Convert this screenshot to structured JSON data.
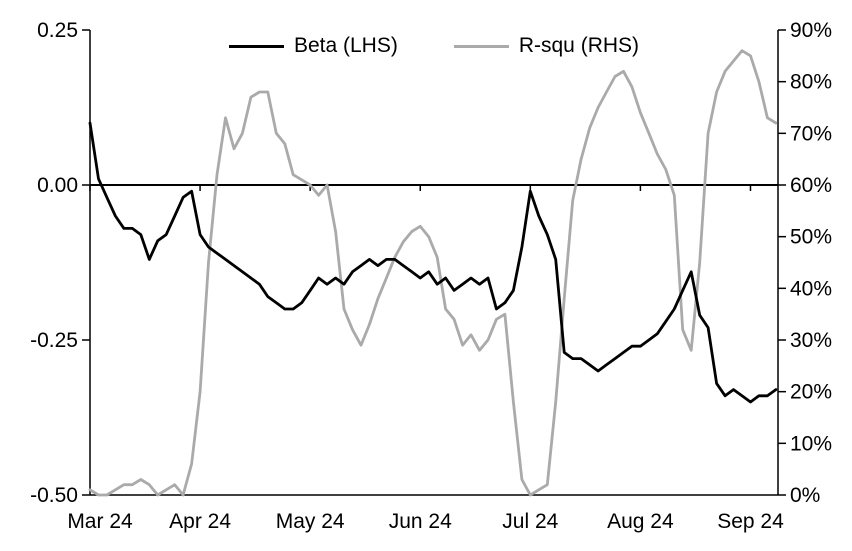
{
  "figure": {
    "background": "#ffffff"
  },
  "chart_data": {
    "type": "line",
    "title": "",
    "xlabel": "",
    "ylabel_left": "",
    "ylabel_right": "",
    "grid": false,
    "x_axis": {
      "tick_labels": [
        "Mar 24",
        "Apr 24",
        "May 24",
        "Jun 24",
        "Jul 24",
        "Aug 24",
        "Sep 24"
      ],
      "tick_positions_months": [
        0,
        1,
        2,
        3,
        4,
        5,
        6
      ],
      "x_range_months": [
        0,
        6.25
      ],
      "points_evenly_spaced": true,
      "points_per_month": 13
    },
    "left_axis": {
      "range": [
        -0.5,
        0.25
      ],
      "ticks": [
        0.25,
        0,
        -0.25,
        -0.5
      ],
      "tick_labels": [
        "0.25",
        "0.00",
        "-0.25",
        "-0.50"
      ],
      "zero_line": true
    },
    "right_axis": {
      "range_percent": [
        0,
        90
      ],
      "ticks_percent": [
        90,
        80,
        70,
        60,
        50,
        40,
        30,
        20,
        10,
        0
      ],
      "tick_labels": [
        "90%",
        "80%",
        "70%",
        "60%",
        "50%",
        "40%",
        "30%",
        "20%",
        "10%",
        "0%"
      ]
    },
    "legend": {
      "position": "top-center"
    },
    "series": [
      {
        "name": "Beta (LHS)",
        "axis": "left",
        "color": "#000000",
        "unit": "beta",
        "values": [
          0.1,
          0.01,
          -0.02,
          -0.05,
          -0.07,
          -0.07,
          -0.08,
          -0.12,
          -0.09,
          -0.08,
          -0.05,
          -0.02,
          -0.01,
          -0.08,
          -0.1,
          -0.11,
          -0.12,
          -0.13,
          -0.14,
          -0.15,
          -0.16,
          -0.18,
          -0.19,
          -0.2,
          -0.2,
          -0.19,
          -0.17,
          -0.15,
          -0.16,
          -0.15,
          -0.16,
          -0.14,
          -0.13,
          -0.12,
          -0.13,
          -0.12,
          -0.12,
          -0.13,
          -0.14,
          -0.15,
          -0.14,
          -0.16,
          -0.15,
          -0.17,
          -0.16,
          -0.15,
          -0.16,
          -0.15,
          -0.2,
          -0.19,
          -0.17,
          -0.1,
          -0.01,
          -0.05,
          -0.08,
          -0.12,
          -0.27,
          -0.28,
          -0.28,
          -0.29,
          -0.3,
          -0.29,
          -0.28,
          -0.27,
          -0.26,
          -0.26,
          -0.25,
          -0.24,
          -0.22,
          -0.2,
          -0.17,
          -0.14,
          -0.21,
          -0.23,
          -0.32,
          -0.34,
          -0.33,
          -0.34,
          -0.35,
          -0.34,
          -0.34,
          -0.33
        ]
      },
      {
        "name": "R-squ (RHS)",
        "axis": "right",
        "color": "#aaaaaa",
        "unit": "percent",
        "values": [
          1,
          0,
          0,
          1,
          2,
          2,
          3,
          2,
          0,
          1,
          2,
          0,
          6,
          20,
          45,
          62,
          73,
          67,
          70,
          77,
          78,
          78,
          70,
          68,
          62,
          61,
          60,
          58,
          60,
          51,
          36,
          32,
          29,
          33,
          38,
          42,
          46,
          49,
          51,
          52,
          50,
          46,
          36,
          34,
          29,
          31,
          28,
          30,
          34,
          35,
          18,
          3,
          0,
          1,
          2,
          18,
          38,
          57,
          65,
          71,
          75,
          78,
          81,
          82,
          79,
          74,
          70,
          66,
          63,
          58,
          32,
          28,
          45,
          70,
          78,
          82,
          84,
          86,
          85,
          80,
          73,
          72
        ]
      }
    ]
  }
}
